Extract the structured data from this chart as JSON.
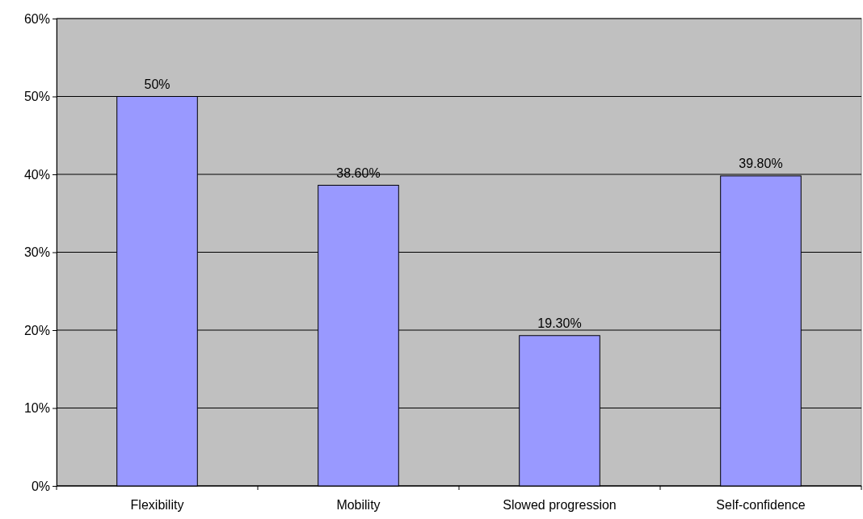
{
  "chart_data": {
    "type": "bar",
    "categories": [
      "Flexibility",
      "Mobility",
      "Slowed progression",
      "Self-confidence"
    ],
    "values": [
      50,
      38.6,
      19.3,
      39.8
    ],
    "value_labels": [
      "50%",
      "38.60%",
      "19.30%",
      "39.80%"
    ],
    "color": "#9999ff",
    "ylim": [
      0,
      60
    ],
    "yticks": [
      {
        "value": 0,
        "label": "0%"
      },
      {
        "value": 10,
        "label": "10%"
      },
      {
        "value": 20,
        "label": "20%"
      },
      {
        "value": 30,
        "label": "30%"
      },
      {
        "value": 40,
        "label": "40%"
      },
      {
        "value": 50,
        "label": "50%"
      },
      {
        "value": 60,
        "label": "60%"
      }
    ],
    "grid": "y"
  }
}
